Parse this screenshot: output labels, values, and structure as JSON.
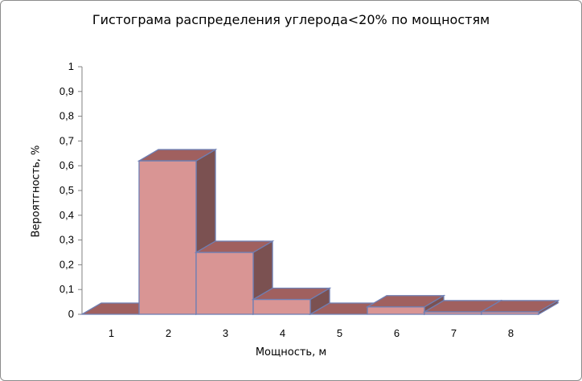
{
  "chart_data": {
    "type": "bar",
    "title": "Гистограма распределения углерода<20% по мощностям",
    "xlabel": "Мощность, м",
    "ylabel": "Вероятгность, %",
    "categories": [
      "1",
      "2",
      "3",
      "4",
      "5",
      "6",
      "7",
      "8"
    ],
    "values": [
      0,
      0.62,
      0.25,
      0.06,
      0,
      0.03,
      0.01,
      0.01
    ],
    "ylim": [
      0,
      1
    ],
    "yticks": [
      "0",
      "0,1",
      "0,2",
      "0,3",
      "0,4",
      "0,5",
      "0,6",
      "0,7",
      "0,8",
      "0,9",
      "1"
    ],
    "grid": false,
    "legend": "none",
    "style": "3d",
    "colors": {
      "front": "#d99594",
      "top": "#a0605f",
      "side": "#7b5151",
      "edge": "#6e7fb4"
    }
  }
}
